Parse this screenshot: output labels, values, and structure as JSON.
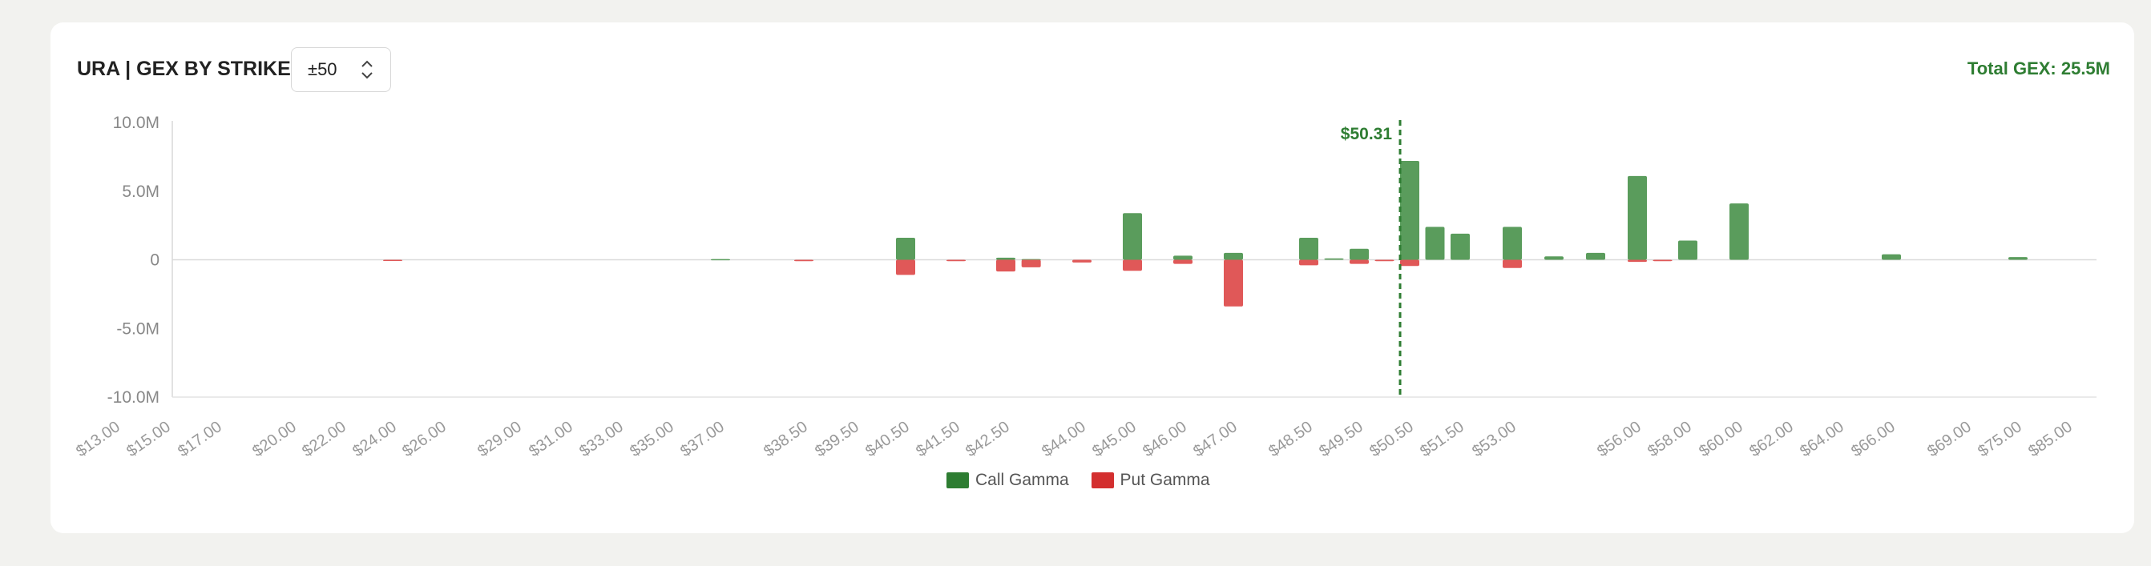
{
  "header": {
    "title": "URA | GEX BY STRIKE",
    "range_value": "±50",
    "total_gex": "Total GEX: 25.5M"
  },
  "colors": {
    "call": "#2e7d32",
    "put": "#d32f2f",
    "call_bar": "#5a9c5c",
    "put_bar": "#e05858",
    "price_line": "#2e7d32"
  },
  "chart_data": {
    "type": "bar",
    "title": "",
    "xlabel": "",
    "ylabel": "",
    "ylim": [
      -10000000,
      10000000
    ],
    "y_ticks": [
      {
        "value": 10000000,
        "label": "10.0M"
      },
      {
        "value": 5000000,
        "label": "5.0M"
      },
      {
        "value": 0,
        "label": "0"
      },
      {
        "value": -5000000,
        "label": "-5.0M"
      },
      {
        "value": -10000000,
        "label": "-10.0M"
      }
    ],
    "x_tick_labels": [
      "$13.00",
      "$15.00",
      "$17.00",
      "$20.00",
      "$22.00",
      "$24.00",
      "$26.00",
      "$29.00",
      "$31.00",
      "$33.00",
      "$35.00",
      "$37.00",
      "$38.50",
      "$39.50",
      "$40.50",
      "$41.50",
      "$42.50",
      "$44.00",
      "$45.00",
      "$46.00",
      "$47.00",
      "$48.50",
      "$49.50",
      "$50.50",
      "$51.50",
      "$53.00",
      "$56.00",
      "$58.00",
      "$60.00",
      "$62.00",
      "$64.00",
      "$66.00",
      "$69.00",
      "$75.00",
      "$85.00"
    ],
    "strikes": [
      13,
      15,
      17,
      20,
      22,
      24,
      26,
      29,
      31,
      33,
      35,
      37,
      38.5,
      39.5,
      40.5,
      41.5,
      42.5,
      44,
      45,
      46,
      47,
      48.5,
      49.5,
      50.5,
      51.5,
      53,
      56,
      58,
      60,
      62,
      64,
      66,
      69,
      75,
      85
    ],
    "bars": [
      {
        "strike": 24,
        "call": 0,
        "put": -50000
      },
      {
        "strike": 37,
        "call": 50000,
        "put": 0
      },
      {
        "strike": 38.5,
        "call": 0,
        "put": -100000
      },
      {
        "strike": 40.5,
        "call": 1600000,
        "put": -1100000
      },
      {
        "strike": 41.5,
        "call": 0,
        "put": -100000
      },
      {
        "strike": 42.5,
        "call": 150000,
        "put": -850000
      },
      {
        "strike": 43,
        "call": 50000,
        "put": -550000
      },
      {
        "strike": 44,
        "call": 0,
        "put": -200000
      },
      {
        "strike": 45,
        "call": 3400000,
        "put": -800000
      },
      {
        "strike": 46,
        "call": 300000,
        "put": -300000
      },
      {
        "strike": 47,
        "call": 500000,
        "put": -3400000
      },
      {
        "strike": 48.5,
        "call": 1600000,
        "put": -400000
      },
      {
        "strike": 49,
        "call": 100000,
        "put": 0
      },
      {
        "strike": 49.5,
        "call": 800000,
        "put": -300000
      },
      {
        "strike": 50,
        "call": 0,
        "put": -100000
      },
      {
        "strike": 50.5,
        "call": 7200000,
        "put": -450000
      },
      {
        "strike": 51,
        "call": 2400000,
        "put": 0
      },
      {
        "strike": 51.5,
        "call": 1900000,
        "put": 0
      },
      {
        "strike": 53,
        "call": 2400000,
        "put": -600000
      },
      {
        "strike": 54,
        "call": 250000,
        "put": 0
      },
      {
        "strike": 55,
        "call": 500000,
        "put": 0
      },
      {
        "strike": 56,
        "call": 6100000,
        "put": -150000
      },
      {
        "strike": 57,
        "call": 0,
        "put": -100000
      },
      {
        "strike": 58,
        "call": 1400000,
        "put": 0
      },
      {
        "strike": 60,
        "call": 4100000,
        "put": 0
      },
      {
        "strike": 66,
        "call": 400000,
        "put": 0
      },
      {
        "strike": 75,
        "call": 200000,
        "put": 0
      }
    ],
    "current_price": {
      "value": 50.31,
      "label": "$50.31"
    },
    "legend": [
      {
        "name": "Call Gamma",
        "color": "#2e7d32"
      },
      {
        "name": "Put Gamma",
        "color": "#d32f2f"
      }
    ]
  }
}
